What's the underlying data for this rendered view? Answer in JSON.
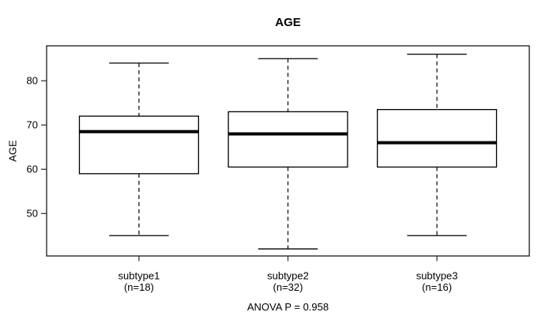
{
  "chart_data": {
    "type": "boxplot",
    "title": "AGE",
    "ylabel": "AGE",
    "yticks": [
      50,
      60,
      70,
      80
    ],
    "ylim": [
      40.4,
      87.9
    ],
    "xlim": [
      0.38,
      3.62
    ],
    "box_width": 0.8,
    "cap_width": 0.4,
    "grid": false,
    "groups": [
      {
        "label": "subtype1",
        "sublabel": "(n=18)",
        "n": 18,
        "whisker_low": 45,
        "q1": 59,
        "median": 68.5,
        "q3": 72,
        "whisker_high": 84
      },
      {
        "label": "subtype2",
        "sublabel": "(n=32)",
        "n": 32,
        "whisker_low": 42,
        "q1": 60.5,
        "median": 68,
        "q3": 73,
        "whisker_high": 85
      },
      {
        "label": "subtype3",
        "sublabel": "(n=16)",
        "n": 16,
        "whisker_low": 45,
        "q1": 60.5,
        "median": 66,
        "q3": 73.5,
        "whisker_high": 86
      }
    ],
    "annotation": "ANOVA P = 0.958",
    "colors": {
      "background": "#ffffff",
      "frame": "#2a2a2a",
      "box_stroke": "#000000",
      "box_fill": "#ffffff",
      "median": "#000000",
      "text": "#000000"
    }
  }
}
